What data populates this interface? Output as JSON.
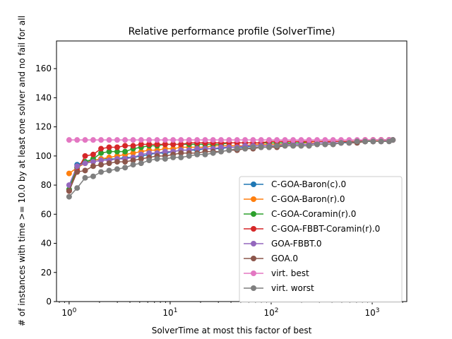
{
  "chart_data": {
    "type": "line",
    "title": "Relative performance profile (SolverTime)",
    "xlabel": "SolverTime at most this factor of best",
    "ylabel": "# of instances with time >= 10.0 by at least one solver and no fail for all",
    "x_scale": "log",
    "xlim": [
      0.75,
      2200
    ],
    "ylim": [
      0,
      179
    ],
    "x_ticks": [
      1,
      10,
      100,
      1000
    ],
    "x_tick_labels": [
      "10^0",
      "10^1",
      "10^2",
      "10^3"
    ],
    "y_ticks": [
      0,
      20,
      40,
      60,
      80,
      100,
      120,
      140,
      160
    ],
    "y_tick_labels": [
      "0",
      "20",
      "40",
      "60",
      "80",
      "100",
      "120",
      "140",
      "160"
    ],
    "grid": false,
    "legend_position": "lower-right",
    "x": [
      1.0,
      1.2,
      1.44,
      1.73,
      2.07,
      2.49,
      2.99,
      3.58,
      4.3,
      5.16,
      6.19,
      7.43,
      8.92,
      10.7,
      12.8,
      15.4,
      18.5,
      22.2,
      26.6,
      31.9,
      38.3,
      46.0,
      55.2,
      66.2,
      79.5,
      95.4,
      114,
      137,
      165,
      198,
      237,
      285,
      342,
      410,
      492,
      591,
      709,
      851,
      1021,
      1225,
      1470,
      1600
    ],
    "series": [
      {
        "name": "C-GOA-Baron(c).0",
        "color": "#1f77b4",
        "values": [
          77,
          94,
          96,
          97,
          98,
          98,
          98,
          99,
          99,
          100,
          101,
          102,
          102,
          103,
          104,
          104,
          104,
          105,
          105,
          105,
          106,
          106,
          106,
          107,
          107,
          107,
          107,
          108,
          108,
          108,
          108,
          109,
          109,
          109,
          109,
          110,
          110,
          110,
          110,
          111,
          111,
          111
        ]
      },
      {
        "name": "C-GOA-Baron(r).0",
        "color": "#ff7f0e",
        "values": [
          88,
          92,
          95,
          97,
          98,
          99,
          100,
          101,
          102,
          103,
          104,
          104,
          105,
          105,
          106,
          106,
          106,
          106,
          107,
          107,
          107,
          107,
          107,
          108,
          108,
          108,
          108,
          108,
          109,
          109,
          109,
          109,
          109,
          110,
          110,
          110,
          110,
          110,
          110,
          111,
          111,
          111
        ]
      },
      {
        "name": "C-GOA-Coramin(r).0",
        "color": "#2ca02c",
        "values": [
          77,
          92,
          96,
          98,
          102,
          103,
          103,
          103,
          105,
          106,
          107,
          107,
          108,
          108,
          108,
          108,
          108,
          108,
          108,
          108,
          109,
          109,
          109,
          109,
          109,
          109,
          109,
          109,
          109,
          109,
          110,
          110,
          110,
          110,
          110,
          110,
          110,
          110,
          111,
          111,
          111,
          111
        ]
      },
      {
        "name": "C-GOA-FBBT-Coramin(r).0",
        "color": "#d62728",
        "values": [
          76,
          90,
          100,
          101,
          105,
          106,
          106,
          107,
          107,
          108,
          108,
          108,
          108,
          108,
          108,
          109,
          109,
          109,
          109,
          109,
          109,
          109,
          109,
          109,
          109,
          110,
          110,
          110,
          110,
          110,
          110,
          110,
          110,
          110,
          110,
          110,
          110,
          111,
          111,
          111,
          111,
          111
        ]
      },
      {
        "name": "GOA-FBBT.0",
        "color": "#9467bd",
        "values": [
          80,
          93,
          95,
          96,
          97,
          97,
          98,
          98,
          99,
          101,
          102,
          102,
          103,
          103,
          104,
          104,
          105,
          105,
          105,
          106,
          106,
          106,
          107,
          107,
          107,
          107,
          107,
          108,
          108,
          108,
          108,
          109,
          109,
          109,
          109,
          109,
          110,
          110,
          110,
          110,
          111,
          111
        ]
      },
      {
        "name": "GOA.0",
        "color": "#8c564b",
        "values": [
          76,
          89,
          90,
          93,
          94,
          95,
          96,
          96,
          97,
          98,
          99,
          100,
          100,
          101,
          102,
          102,
          102,
          103,
          103,
          103,
          104,
          104,
          105,
          105,
          106,
          106,
          106,
          107,
          107,
          107,
          107,
          108,
          108,
          108,
          109,
          109,
          109,
          110,
          110,
          110,
          111,
          111
        ]
      },
      {
        "name": "virt. best",
        "color": "#e377c2",
        "values": [
          111,
          111,
          111,
          111,
          111,
          111,
          111,
          111,
          111,
          111,
          111,
          111,
          111,
          111,
          111,
          111,
          111,
          111,
          111,
          111,
          111,
          111,
          111,
          111,
          111,
          111,
          111,
          111,
          111,
          111,
          111,
          111,
          111,
          111,
          111,
          111,
          111,
          111,
          111,
          111,
          111,
          111
        ]
      },
      {
        "name": "virt. worst",
        "color": "#7f7f7f",
        "values": [
          72,
          78,
          85,
          86,
          89,
          90,
          91,
          92,
          94,
          95,
          97,
          98,
          98,
          99,
          99,
          100,
          101,
          101,
          102,
          103,
          104,
          105,
          105,
          106,
          106,
          106,
          107,
          107,
          107,
          107,
          107,
          108,
          108,
          108,
          109,
          109,
          110,
          110,
          110,
          110,
          110,
          111
        ]
      }
    ]
  }
}
